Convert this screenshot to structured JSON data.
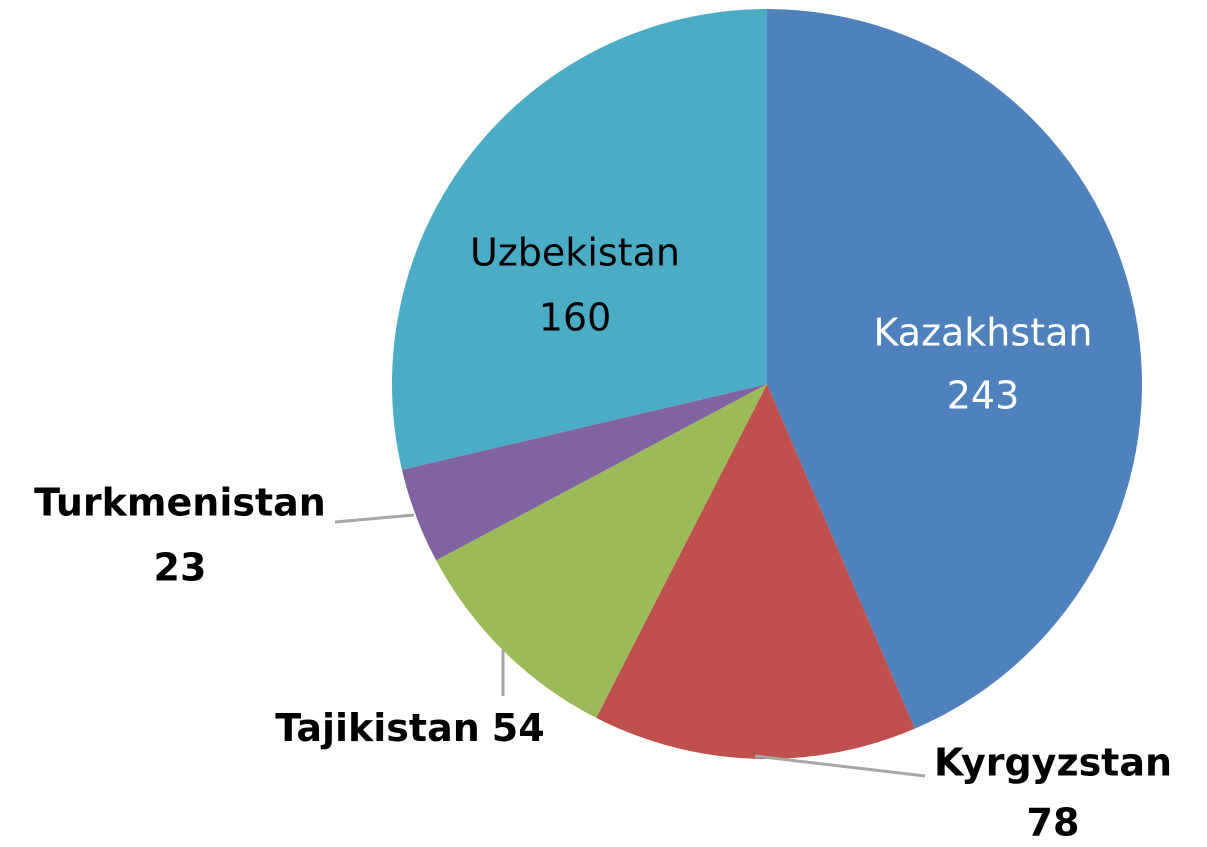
{
  "chart_data": {
    "type": "pie",
    "categories": [
      "Kazakhstan",
      "Kyrgyzstan",
      "Tajikistan",
      "Turkmenistan",
      "Uzbekistan"
    ],
    "values": [
      243,
      78,
      54,
      23,
      160
    ],
    "colors": [
      "#4f81bd",
      "#c0504d",
      "#9bbb59",
      "#8064a2",
      "#4bacc6"
    ]
  }
}
